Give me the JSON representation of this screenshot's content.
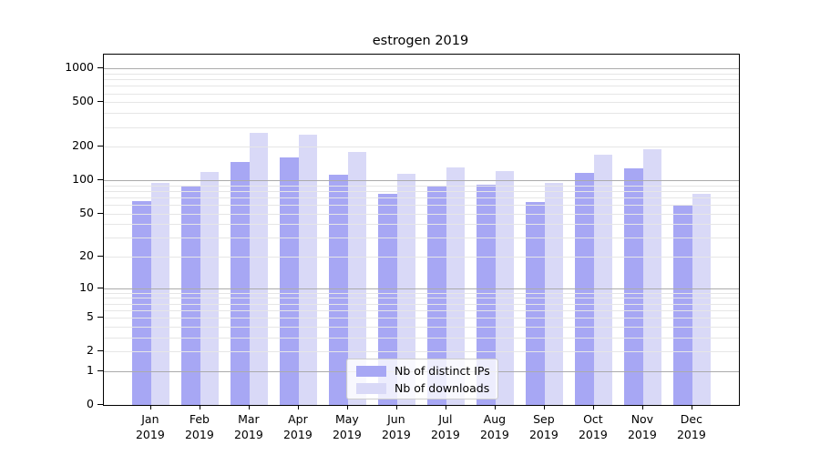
{
  "chart_data": {
    "type": "bar",
    "title": "estrogen 2019",
    "categories": [
      "Jan",
      "Feb",
      "Mar",
      "Apr",
      "May",
      "Jun",
      "Jul",
      "Aug",
      "Sep",
      "Oct",
      "Nov",
      "Dec"
    ],
    "x_year_label": "2019",
    "series": [
      {
        "name": "Nb of distinct IPs",
        "color": "#a7a7f4",
        "values": [
          65,
          87,
          145,
          160,
          112,
          75,
          89,
          92,
          64,
          116,
          129,
          60
        ]
      },
      {
        "name": "Nb of downloads",
        "color": "#d9d9f7",
        "values": [
          95,
          118,
          265,
          255,
          179,
          114,
          130,
          120,
          95,
          169,
          189,
          75
        ]
      }
    ],
    "xlabel": "",
    "ylabel": "",
    "yscale": "log1p",
    "ylim": [
      0,
      1320
    ],
    "yticks": [
      0,
      1,
      2,
      5,
      10,
      20,
      50,
      100,
      200,
      500,
      1000
    ],
    "major_gridline_values": [
      1,
      10,
      100,
      1000
    ],
    "minor_gridline_decades": [
      1,
      10,
      100
    ],
    "grid": true,
    "legend_position": "lower center"
  },
  "colors": {
    "major_grid": "#ababab",
    "minor_grid": "#e6e6e6",
    "spine": "#000000",
    "legend_border": "#cccccc",
    "legend_background": "rgba(255,255,255,0.8)"
  }
}
